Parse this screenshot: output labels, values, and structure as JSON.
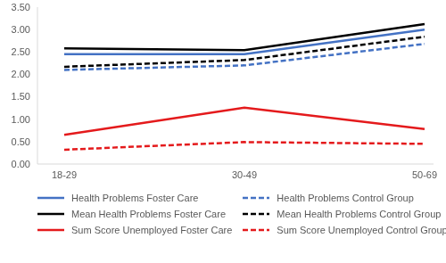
{
  "chart_data": {
    "type": "line",
    "categories": [
      "18-29",
      "30-49",
      "50-69"
    ],
    "ylim": [
      0,
      3.5
    ],
    "yticks": [
      {
        "value": 0,
        "label": "0.00"
      },
      {
        "value": 0.5,
        "label": "0.50"
      },
      {
        "value": 1,
        "label": "1.00"
      },
      {
        "value": 1.5,
        "label": "1.50"
      },
      {
        "value": 2,
        "label": "2.00"
      },
      {
        "value": 2.5,
        "label": "2.50"
      },
      {
        "value": 3,
        "label": "3.00"
      },
      {
        "value": 3.5,
        "label": "3.50"
      }
    ],
    "grid": false,
    "legend": "bottom",
    "series": [
      {
        "name": "Health Problems Foster Care",
        "color": "#4472c4",
        "line_style": "solid",
        "values": [
          2.45,
          2.45,
          3.0
        ]
      },
      {
        "name": "Health Problems Control Group",
        "color": "#4472c4",
        "line_style": "dashed",
        "values": [
          2.1,
          2.2,
          2.68
        ]
      },
      {
        "name": "Mean Health Problems Foster Care",
        "color": "#000000",
        "line_style": "solid",
        "values": [
          2.58,
          2.54,
          3.12
        ]
      },
      {
        "name": "Mean Health Problems Control Group",
        "color": "#000000",
        "line_style": "dashed",
        "values": [
          2.17,
          2.32,
          2.84
        ]
      },
      {
        "name": "Sum Score Unemployed Foster Care",
        "color": "#e41a1c",
        "line_style": "solid",
        "values": [
          0.65,
          1.26,
          0.78
        ]
      },
      {
        "name": "Sum Score Unemployed Control Group",
        "color": "#e41a1c",
        "line_style": "dashed",
        "values": [
          0.32,
          0.49,
          0.45
        ]
      }
    ]
  }
}
